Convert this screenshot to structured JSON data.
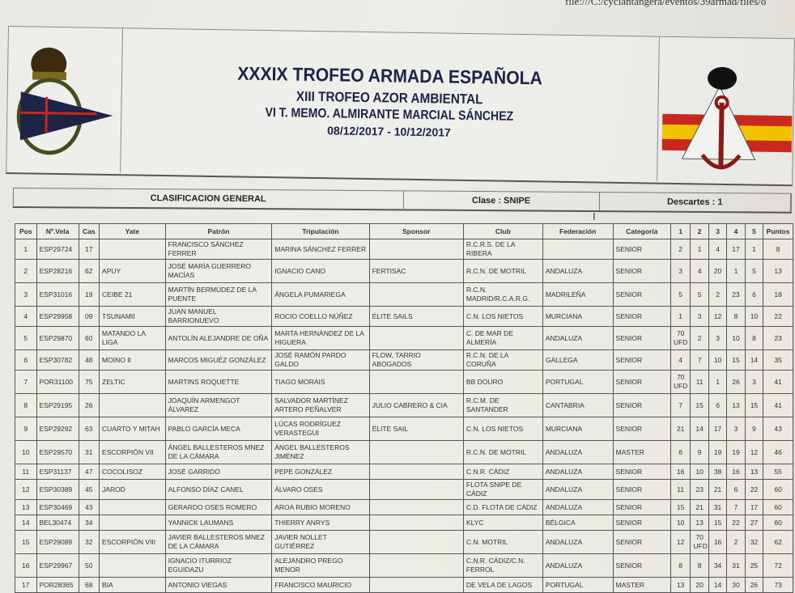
{
  "url": "file:///C:/cyclantangera/eventos/39armad/files/o",
  "header": {
    "title": "XXXIX TROFEO ARMADA ESPAÑOLA",
    "subtitle1": "XIII TROFEO AZOR AMBIENTAL",
    "subtitle2": "VI T. MEMO. ALMIRANTE MARCIAL SÁNCHEZ",
    "dates": "08/12/2017 - 10/12/2017"
  },
  "colors": {
    "title": "#1c2448",
    "flag_red": "#c8281e",
    "flag_yellow": "#f2c200",
    "pennant_blue": "#1c2448"
  },
  "info": {
    "classification": "CLASIFICACION GENERAL",
    "class": "Clase : SNIPE",
    "discards": "Descartes : 1"
  },
  "table": {
    "columns": [
      "Pos",
      "Nº.Vela",
      "Cas",
      "Yate",
      "Patrón",
      "Tripulación",
      "Sponsor",
      "Club",
      "Federación",
      "Categoría",
      "1",
      "2",
      "3",
      "4",
      "5",
      "Puntos"
    ],
    "rows": [
      [
        "1",
        "ESP29724",
        "17",
        "",
        "FRANCISCO SÁNCHEZ FERRER",
        "MARINA SÁNCHEZ FERRER",
        "",
        "R.C.R.S. DE LA RIBERA",
        "",
        "SENIOR",
        "2",
        "1",
        "4",
        "17",
        "1",
        "8"
      ],
      [
        "2",
        "ESP28216",
        "62",
        "APUY",
        "JOSÉ MARÍA GUERRERO MACÍAS",
        "IGNACIO CANO",
        "FERTISAC",
        "R.C.N. DE MOTRIL",
        "ANDALUZA",
        "SENIOR",
        "3",
        "4",
        "20",
        "1",
        "5",
        "13"
      ],
      [
        "3",
        "ESP31016",
        "19",
        "CEIBE 21",
        "MARTÍN BERMÚDEZ DE LA PUENTE",
        "ÁNGELA PUMARIEGA",
        "",
        "R.C.N. MADRID/R.C.A.R.G.",
        "MADRILEÑA",
        "SENIOR",
        "5",
        "5",
        "2",
        "23",
        "6",
        "18"
      ],
      [
        "4",
        "ESP29958",
        "09",
        "TSUNAMII",
        "JUAN MANUEL BARRIONUEVO",
        "ROCIO COELLO NÚÑEZ",
        "ÉLITE SAILS",
        "C.N. LOS NIETOS",
        "MURCIANA",
        "SENIOR",
        "1",
        "3",
        "12",
        "8",
        "10",
        "22"
      ],
      [
        "5",
        "ESP29870",
        "60",
        "MATANDO LA LIGA",
        "ANTOLÍN ALEJANDRE DE OÑA",
        "MARTA HERNÁNDEZ DE LA HIGUERA",
        "",
        "C. DE MAR DE ALMERÍA",
        "ANDALUZA",
        "SENIOR",
        "70 UFD",
        "2",
        "3",
        "10",
        "8",
        "23"
      ],
      [
        "6",
        "ESP30782",
        "48",
        "MOINO II",
        "MARCOS MIGUÉZ GONZÁLEZ",
        "JOSÉ RAMÓN PARDO GALDO",
        "FLOW, TARRIO ABOGADOS",
        "R.C.N. DE LA CORUÑA",
        "GALLEGA",
        "SENIOR",
        "4",
        "7",
        "10",
        "15",
        "14",
        "35"
      ],
      [
        "7",
        "POR31100",
        "75",
        "ZELTIC",
        "MARTINS ROQUETTE",
        "TIAGO MORAIS",
        "",
        "BB DOURO",
        "PORTUGAL",
        "SENIOR",
        "70 UFD",
        "11",
        "1",
        "26",
        "3",
        "41"
      ],
      [
        "8",
        "ESP29195",
        "26",
        "",
        "JOAQUÍN ARMENGOT ÁLVAREZ",
        "SALVADOR MARTÍNEZ ARTERO PEÑALVER",
        "JULIO CABRERO & CIA",
        "R.C.M. DE SANTANDER",
        "CANTABRIA",
        "SENIOR",
        "7",
        "15",
        "6",
        "13",
        "15",
        "41"
      ],
      [
        "9",
        "ESP29292",
        "63",
        "CUARTO Y MITAH",
        "PABLO GARCÍA MECA",
        "LÚCAS RODRÍGUEZ VERASTEGUI",
        "ÉLITE SAIL",
        "C.N. LOS NIETOS",
        "MURCIANA",
        "SENIOR",
        "21",
        "14",
        "17",
        "3",
        "9",
        "43"
      ],
      [
        "10",
        "ESP29570",
        "31",
        "ESCORPIÓN VII",
        "ÁNGEL BALLESTEROS MNEZ DE LA CÁMARA",
        "ÁNGEL BALLESTEROS JIMÉNEZ",
        "",
        "R.C.N. DE MOTRIL",
        "ANDALUZA",
        "MASTER",
        "6",
        "9",
        "19",
        "19",
        "12",
        "46"
      ],
      [
        "11",
        "ESP31137",
        "47",
        "COCOLISOZ",
        "JOSÉ GARRIDO",
        "PEPE GONZÁLEZ",
        "",
        "C.N.R. CÁDIZ",
        "ANDALUZA",
        "SENIOR",
        "16",
        "10",
        "38",
        "16",
        "13",
        "55"
      ],
      [
        "12",
        "ESP30389",
        "45",
        "JAROD",
        "ALFONSO DÍAZ CANEL",
        "ÁLVARO OSES",
        "",
        "FLOTA SNIPE DE CÁDIZ",
        "ANDALUZA",
        "SENIOR",
        "11",
        "23",
        "21",
        "6",
        "22",
        "60"
      ],
      [
        "13",
        "ESP30469",
        "43",
        "",
        "GERARDO OSES ROMERO",
        "AROA RUBIO MORENO",
        "",
        "C.D. FLOTA DE CÁDIZ",
        "ANDALUZA",
        "SENIOR",
        "15",
        "21",
        "31",
        "7",
        "17",
        "60"
      ],
      [
        "14",
        "BEL30474",
        "34",
        "",
        "YANNICK LAUMANS",
        "THIERRY ANRYS",
        "",
        "KLYC",
        "BÉLGICA",
        "SENIOR",
        "10",
        "13",
        "15",
        "22",
        "27",
        "60"
      ],
      [
        "15",
        "ESP29089",
        "32",
        "ESCORPIÓN VIII",
        "JAVIER BALLESTEROS MNEZ DE LA CÁMARA",
        "JAVIER NOLLET GUTIÉRREZ",
        "",
        "C.N. MOTRIL",
        "ANDALUZA",
        "SENIOR",
        "12",
        "70 UFD",
        "16",
        "2",
        "32",
        "62"
      ],
      [
        "16",
        "ESP29967",
        "50",
        "",
        "IGNACIO ITURRIOZ EGUIDAZU",
        "ALEJANDRO PREGO MENOR",
        "",
        "C.N.R. CÁDIZ/C.N. FERROL",
        "ANDALUZA",
        "SENIOR",
        "8",
        "8",
        "34",
        "31",
        "25",
        "72"
      ],
      [
        "17",
        "POR28365",
        "68",
        "BIA",
        "ANTONIO VIEGAS",
        "FRANCISCO MAURICIO",
        "",
        "DE VELA DE LAGOS",
        "PORTUGAL",
        "MASTER",
        "13",
        "20",
        "14",
        "30",
        "26",
        "73"
      ]
    ]
  }
}
